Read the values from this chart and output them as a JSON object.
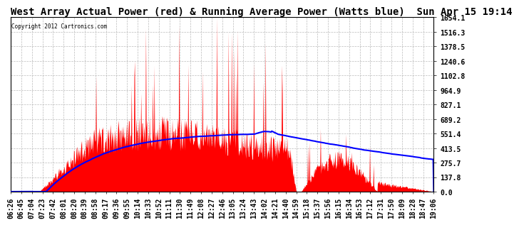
{
  "title": "West Array Actual Power (red) & Running Average Power (Watts blue)  Sun Apr 15 19:14",
  "copyright": "Copyright 2012 Cartronics.com",
  "background_color": "#ffffff",
  "yticks": [
    0.0,
    137.8,
    275.7,
    413.5,
    551.4,
    689.2,
    827.1,
    964.9,
    1102.8,
    1240.6,
    1378.5,
    1516.3,
    1654.1
  ],
  "ymax": 1654.1,
  "ymin": 0.0,
  "red_color": "#ff0000",
  "blue_color": "#0000ff",
  "grid_color": "#aaaaaa",
  "x_labels": [
    "06:26",
    "06:45",
    "07:04",
    "07:23",
    "07:42",
    "08:01",
    "08:20",
    "08:39",
    "08:58",
    "09:17",
    "09:36",
    "09:55",
    "10:14",
    "10:33",
    "10:52",
    "11:11",
    "11:30",
    "11:49",
    "12:08",
    "12:27",
    "12:46",
    "13:05",
    "13:24",
    "13:43",
    "14:02",
    "14:21",
    "14:40",
    "14:59",
    "15:18",
    "15:37",
    "15:56",
    "16:15",
    "16:34",
    "16:53",
    "17:12",
    "17:31",
    "17:50",
    "18:09",
    "18:28",
    "18:47",
    "19:06"
  ],
  "title_fontsize": 10,
  "tick_fontsize": 7
}
